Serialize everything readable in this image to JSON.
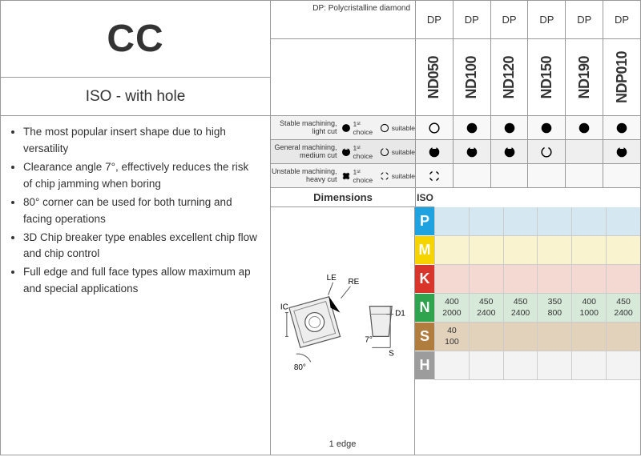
{
  "header": {
    "code": "CC",
    "subtitle": "ISO - with hole",
    "dp_note": "DP: Polycristalline diamond"
  },
  "bullets": [
    "The most popular insert shape due to high versatility",
    "Clearance angle 7°, effectively reduces the risk of chip jamming when boring",
    "80° corner can be used for both turning and facing operations",
    "3D Chip breaker type enables excellent chip flow and chip control",
    "Full edge and full face types allow maximum ap and special applications"
  ],
  "grades": [
    "ND050",
    "ND100",
    "ND120",
    "ND150",
    "ND190",
    "NDP010"
  ],
  "dp_labels": [
    "DP",
    "DP",
    "DP",
    "DP",
    "DP",
    "DP"
  ],
  "machining": {
    "rows": [
      {
        "label": "Stable machining, light cut",
        "first": "circle-fill",
        "suitable": "circle-open"
      },
      {
        "label": "General machining, medium cut",
        "first": "notch-fill",
        "suitable": "notch-open"
      },
      {
        "label": "Unstable machining, heavy cut",
        "first": "cross-fill",
        "suitable": "cross-open"
      }
    ],
    "legend": {
      "first": "1ˢᵗ choice",
      "suitable": "suitable"
    },
    "choices": [
      [
        "circle-open",
        "circle-fill",
        "circle-fill",
        "circle-fill",
        "circle-fill",
        "circle-fill"
      ],
      [
        "notch-fill",
        "notch-fill",
        "notch-fill",
        "notch-open",
        "",
        "notch-fill"
      ],
      [
        "cross-open",
        "",
        "",
        "",
        "",
        ""
      ]
    ]
  },
  "dimensions": {
    "title": "Dimensions",
    "iso_label": "ISO",
    "edge_note": "1 edge",
    "annot": {
      "LE": "LE",
      "RE": "RE",
      "IC": "IC",
      "D1": "D1",
      "angle7": "7°",
      "S": "S",
      "corner": "80°"
    }
  },
  "materials": {
    "letters": [
      "P",
      "M",
      "K",
      "N",
      "S",
      "H"
    ],
    "colors": {
      "P": {
        "tab": "#1ea3e0",
        "row": "#d5e8f2"
      },
      "M": {
        "tab": "#f5d400",
        "row": "#faf3cf"
      },
      "K": {
        "tab": "#d9352b",
        "row": "#f4d9d2"
      },
      "N": {
        "tab": "#2ea44f",
        "row": "#d7e9d8"
      },
      "S": {
        "tab": "#b07d3f",
        "row": "#e2d2bb"
      },
      "H": {
        "tab": "#9c9c9c",
        "row": "#f3f3f3"
      }
    },
    "data": {
      "P": [
        "",
        "",
        "",
        "",
        "",
        ""
      ],
      "M": [
        "",
        "",
        "",
        "",
        "",
        ""
      ],
      "K": [
        "",
        "",
        "",
        "",
        "",
        ""
      ],
      "N": [
        [
          "400",
          "2000"
        ],
        [
          "450",
          "2400"
        ],
        [
          "450",
          "2400"
        ],
        [
          "350",
          "800"
        ],
        [
          "400",
          "1000"
        ],
        [
          "450",
          "2400"
        ]
      ],
      "S": [
        [
          "40",
          "100"
        ],
        "",
        "",
        "",
        "",
        ""
      ],
      "H": [
        "",
        "",
        "",
        "",
        "",
        ""
      ]
    }
  }
}
